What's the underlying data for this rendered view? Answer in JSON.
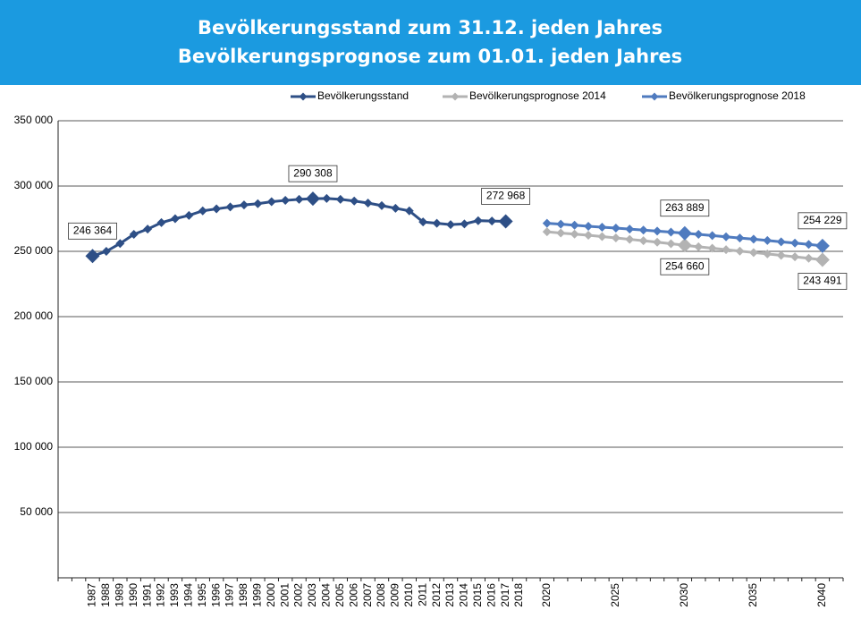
{
  "chart_data": {
    "type": "line",
    "title": "Bevölkerungsstand zum 31.12. jeden Jahres",
    "subtitle": "Bevölkerungsprognose zum 01.01. jeden Jahres",
    "categories": [
      null,
      null,
      "1987",
      "1988",
      "1989",
      "1990",
      "1991",
      "1992",
      "1993",
      "1994",
      "1995",
      "1996",
      "1997",
      "1998",
      "1999",
      "2000",
      "2001",
      "2002",
      "2003",
      "2004",
      "2005",
      "2006",
      "2007",
      "2008",
      "2009",
      "2010",
      "2011",
      "2012",
      "2013",
      "2014",
      "2015",
      "2016",
      "2017",
      "2018",
      null,
      "2020",
      null,
      null,
      null,
      null,
      "2025",
      null,
      null,
      null,
      null,
      "2030",
      null,
      null,
      null,
      null,
      "2035",
      null,
      null,
      null,
      null,
      "2040",
      null
    ],
    "series": [
      {
        "name": "Bevölkerungsstand",
        "color": "#2e4f86",
        "values": [
          null,
          null,
          246364,
          250000,
          256000,
          263000,
          267000,
          272000,
          275000,
          277500,
          281000,
          282500,
          284000,
          285500,
          286500,
          288000,
          289000,
          289800,
          290308,
          290500,
          289800,
          288500,
          287000,
          285000,
          283000,
          281000,
          272500,
          271500,
          270500,
          271000,
          273500,
          273200,
          272968,
          null,
          null,
          null,
          null,
          null,
          null,
          null,
          null,
          null,
          null,
          null,
          null,
          null,
          null,
          null,
          null,
          null,
          null,
          null,
          null,
          null,
          null,
          null,
          null
        ],
        "value_labels": [
          null,
          null,
          "246 364",
          null,
          null,
          null,
          null,
          null,
          null,
          null,
          null,
          null,
          null,
          null,
          null,
          null,
          null,
          null,
          "290 308",
          null,
          null,
          null,
          null,
          null,
          null,
          null,
          null,
          null,
          null,
          null,
          null,
          null,
          "272 968",
          null,
          null,
          null,
          null,
          null,
          null,
          null,
          null,
          null,
          null,
          null,
          null,
          null,
          null,
          null,
          null,
          null,
          null,
          null,
          null,
          null,
          null,
          null,
          null
        ]
      },
      {
        "name": "Bevölkerungsprognose 2014",
        "color": "#b3b3b3",
        "values": [
          null,
          null,
          null,
          null,
          null,
          null,
          null,
          null,
          null,
          null,
          null,
          null,
          null,
          null,
          null,
          null,
          null,
          null,
          null,
          null,
          null,
          null,
          null,
          null,
          null,
          null,
          null,
          null,
          null,
          null,
          null,
          null,
          null,
          null,
          null,
          265000,
          264000,
          263200,
          262300,
          261300,
          260300,
          259200,
          258100,
          257000,
          255800,
          254660,
          253500,
          252400,
          251300,
          250200,
          249100,
          248000,
          246900,
          245800,
          244700,
          243491,
          null
        ],
        "value_labels": [
          null,
          null,
          null,
          null,
          null,
          null,
          null,
          null,
          null,
          null,
          null,
          null,
          null,
          null,
          null,
          null,
          null,
          null,
          null,
          null,
          null,
          null,
          null,
          null,
          null,
          null,
          null,
          null,
          null,
          null,
          null,
          null,
          null,
          null,
          null,
          null,
          null,
          null,
          null,
          null,
          null,
          null,
          null,
          null,
          null,
          "254 660",
          null,
          null,
          null,
          null,
          null,
          null,
          null,
          null,
          null,
          "243 491",
          null
        ]
      },
      {
        "name": "Bevölkerungsprognose 2018",
        "color": "#4f7bbf",
        "values": [
          null,
          null,
          null,
          null,
          null,
          null,
          null,
          null,
          null,
          null,
          null,
          null,
          null,
          null,
          null,
          null,
          null,
          null,
          null,
          null,
          null,
          null,
          null,
          null,
          null,
          null,
          null,
          null,
          null,
          null,
          null,
          null,
          null,
          null,
          null,
          271500,
          270800,
          270000,
          269200,
          268500,
          267800,
          267000,
          266300,
          265500,
          264700,
          263889,
          263000,
          262100,
          261100,
          260200,
          259300,
          258300,
          257300,
          256300,
          255300,
          254229,
          null
        ],
        "value_labels": [
          null,
          null,
          null,
          null,
          null,
          null,
          null,
          null,
          null,
          null,
          null,
          null,
          null,
          null,
          null,
          null,
          null,
          null,
          null,
          null,
          null,
          null,
          null,
          null,
          null,
          null,
          null,
          null,
          null,
          null,
          null,
          null,
          null,
          null,
          null,
          null,
          null,
          null,
          null,
          null,
          null,
          null,
          null,
          null,
          null,
          "263 889",
          null,
          null,
          null,
          null,
          null,
          null,
          null,
          null,
          null,
          "254 229",
          null
        ]
      }
    ],
    "ylim": [
      0,
      350000
    ],
    "yticks": [
      {
        "value": 50000,
        "label": "50 000"
      },
      {
        "value": 100000,
        "label": "100 000"
      },
      {
        "value": 150000,
        "label": "150 000"
      },
      {
        "value": 200000,
        "label": "200 000"
      },
      {
        "value": 250000,
        "label": "250 000"
      },
      {
        "value": 300000,
        "label": "300 000"
      },
      {
        "value": 350000,
        "label": "350 000"
      }
    ],
    "grid": true,
    "legend": "top"
  }
}
